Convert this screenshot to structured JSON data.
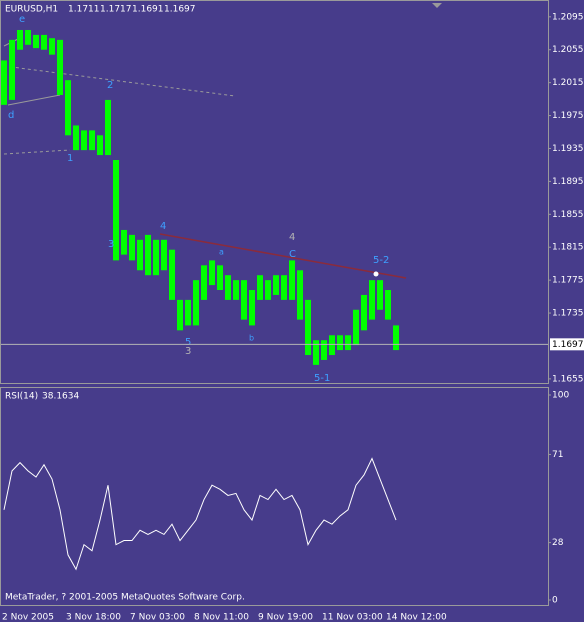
{
  "chart_data": [
    {
      "type": "hilo",
      "title": "EURUSD,H1",
      "ohlc": {
        "open": 1.1711,
        "high": 1.1717,
        "low": 1.1691,
        "close": 1.1697
      },
      "color": "#00ff00",
      "high": [
        1.2042,
        1.2067,
        1.2079,
        1.2079,
        1.2073,
        1.2073,
        1.2069,
        1.2067,
        1.2018,
        1.1963,
        1.1957,
        1.1957,
        1.1951,
        1.1994,
        1.1921,
        1.1836,
        1.183,
        1.1824,
        1.183,
        1.1824,
        1.1824,
        1.1812,
        1.1751,
        1.1751,
        1.1775,
        1.1793,
        1.1799,
        1.1793,
        1.1781,
        1.1775,
        1.1775,
        1.1763,
        1.1781,
        1.1775,
        1.1781,
        1.1781,
        1.1799,
        1.1787,
        1.1751,
        1.1702,
        1.1702,
        1.1708,
        1.1708,
        1.1708,
        1.1739,
        1.1757,
        1.1775,
        1.1775,
        1.1763,
        1.172
      ],
      "low": [
        1.1988,
        1.1994,
        1.2055,
        1.2061,
        1.2057,
        1.2055,
        1.2049,
        1.2,
        1.1951,
        1.1933,
        1.1933,
        1.1933,
        1.1927,
        1.1927,
        1.1799,
        1.1806,
        1.1799,
        1.1787,
        1.1781,
        1.1781,
        1.1787,
        1.1751,
        1.1714,
        1.172,
        1.172,
        1.1751,
        1.1769,
        1.1763,
        1.1751,
        1.1751,
        1.1727,
        1.172,
        1.1751,
        1.1751,
        1.1757,
        1.1751,
        1.1751,
        1.1727,
        1.1684,
        1.1672,
        1.1678,
        1.1684,
        1.169,
        1.169,
        1.1696,
        1.1714,
        1.1727,
        1.1739,
        1.1727,
        1.169
      ],
      "last_price": 1.1697,
      "ylim": [
        1.165,
        1.2113
      ],
      "yticks": [
        1.2095,
        1.2055,
        1.2015,
        1.1975,
        1.1935,
        1.1895,
        1.1855,
        1.1815,
        1.1775,
        1.1735,
        1.1655
      ],
      "annotations": [
        "e",
        "d",
        "2",
        "1",
        "4",
        "3",
        "a",
        "4",
        "C",
        "5-2",
        "5",
        "3",
        "b",
        "5-1"
      ]
    },
    {
      "type": "line",
      "title": "RSI(14)",
      "current": 38.1634,
      "color": "#ffffff",
      "categories": [
        "2 Nov 2005",
        null,
        null,
        null,
        null,
        null,
        null,
        null,
        "3 Nov 18:00",
        null,
        null,
        null,
        null,
        null,
        null,
        null,
        "7 Nov 03:00",
        null,
        null,
        null,
        null,
        null,
        null,
        null,
        "8 Nov 11:00",
        null,
        null,
        null,
        null,
        null,
        null,
        null,
        "9 Nov 19:00",
        null,
        null,
        null,
        null,
        null,
        null,
        null,
        "11 Nov 03:00",
        null,
        null,
        null,
        null,
        null,
        null,
        null,
        "14 Nov 12:00",
        null
      ],
      "values": [
        44,
        63,
        67,
        63,
        60,
        66,
        59,
        44,
        22,
        15,
        27,
        24,
        39,
        56,
        27,
        29,
        29,
        34,
        32,
        34,
        32,
        37,
        29,
        34,
        39,
        49,
        56,
        54,
        51,
        52,
        44,
        39,
        51,
        49,
        54,
        49,
        51,
        44,
        27,
        34,
        39,
        37,
        41,
        44,
        56,
        61,
        69,
        59,
        49,
        39
      ],
      "ylim": [
        0,
        100
      ],
      "yticks": [
        100,
        71,
        28,
        0
      ]
    }
  ],
  "footer": "MetaTrader, ? 2001-2005 MetaQuotes Software Corp."
}
